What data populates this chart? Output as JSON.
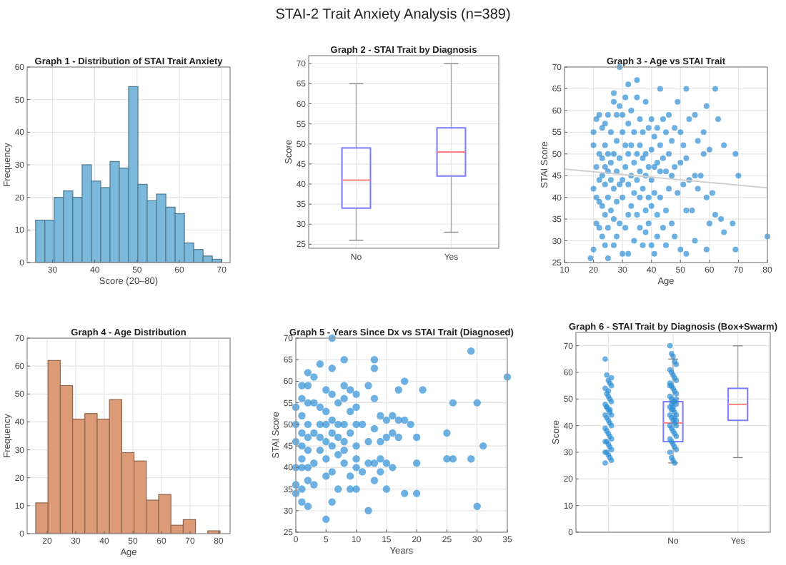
{
  "chart_data": [
    {
      "type": "other",
      "title": "STAI-2 Trait Anxiety Analysis (n=389)"
    },
    {
      "type": "histogram",
      "title": "Graph 1 - Distribution of STAI Trait Anxiety",
      "xlabel": "Score (20–80)",
      "ylabel": "Frequency",
      "color": "#7ab8dc",
      "grid": true,
      "bins": [
        26,
        28.2,
        30.4,
        32.6,
        34.8,
        37,
        39.2,
        41.4,
        43.6,
        45.8,
        48,
        50.2,
        52.4,
        54.6,
        56.8,
        59,
        61.2,
        63.4,
        65.6,
        67.8,
        70
      ],
      "values": [
        13,
        13,
        20,
        22,
        20,
        30,
        25,
        23,
        31,
        29,
        54,
        24,
        19,
        21,
        17,
        15,
        6,
        4,
        2,
        1
      ],
      "xlim": [
        24,
        72
      ],
      "xticks": [
        30,
        40,
        50,
        60,
        70
      ],
      "ylim": [
        0,
        60
      ],
      "yticks": [
        0,
        10,
        20,
        30,
        40,
        50,
        60
      ]
    },
    {
      "type": "box",
      "title": "Graph 2 - STAI Trait by Diagnosis",
      "ylabel": "Score",
      "color": "#7b7bff",
      "grid": true,
      "categories": [
        "No",
        "Yes"
      ],
      "boxes": [
        {
          "low": 26,
          "q1": 34,
          "median": 41,
          "q3": 49,
          "high": 65
        },
        {
          "low": 28,
          "q1": 42,
          "median": 48,
          "q3": 54,
          "high": 70
        }
      ],
      "ylim": [
        24,
        72
      ],
      "yticks": [
        25,
        30,
        35,
        40,
        45,
        50,
        55,
        60,
        65,
        70
      ]
    },
    {
      "type": "scatter",
      "title": "Graph 3 - Age vs STAI Trait",
      "xlabel": "Age",
      "ylabel": "STAI Score",
      "grid": true,
      "xlim": [
        10,
        80
      ],
      "xticks": [
        10,
        20,
        30,
        40,
        50,
        60,
        70,
        80
      ],
      "ylim": [
        25,
        70
      ],
      "yticks": [
        25,
        30,
        35,
        40,
        45,
        50,
        55,
        60,
        65,
        70
      ],
      "series": [
        {
          "type": "scatter",
          "marker": "circle",
          "color": "#2f8fd6",
          "x": [
            20,
            20,
            21,
            21,
            20,
            19,
            20,
            21,
            21,
            22,
            22,
            22,
            22,
            22,
            23,
            23,
            23,
            23,
            23,
            24,
            24,
            24,
            24,
            24,
            24,
            25,
            25,
            25,
            25,
            25,
            25,
            26,
            26,
            26,
            26,
            27,
            27,
            27,
            27,
            27,
            27,
            28,
            28,
            28,
            28,
            28,
            29,
            29,
            29,
            29,
            29,
            30,
            30,
            30,
            30,
            30,
            31,
            31,
            31,
            31,
            32,
            32,
            32,
            32,
            32,
            32,
            33,
            33,
            33,
            33,
            34,
            34,
            34,
            34,
            35,
            35,
            35,
            35,
            35,
            36,
            36,
            36,
            36,
            36,
            37,
            37,
            37,
            37,
            38,
            38,
            38,
            38,
            38,
            39,
            39,
            39,
            39,
            40,
            40,
            40,
            40,
            40,
            41,
            41,
            41,
            41,
            42,
            42,
            42,
            42,
            43,
            43,
            43,
            43,
            44,
            44,
            44,
            45,
            45,
            45,
            45,
            46,
            46,
            46,
            47,
            47,
            47,
            48,
            48,
            48,
            49,
            49,
            50,
            50,
            50,
            51,
            51,
            52,
            52,
            52,
            52,
            53,
            53,
            54,
            55,
            55,
            55,
            56,
            56,
            57,
            58,
            58,
            59,
            59,
            59,
            60,
            60,
            61,
            62,
            62,
            63,
            64,
            65,
            65,
            68,
            69,
            69,
            70,
            80
          ],
          "values": [
            55,
            52,
            58,
            47,
            42,
            26,
            28,
            40,
            34,
            59,
            50,
            44,
            39,
            33,
            56,
            49,
            45,
            38,
            31,
            57,
            52,
            47,
            43,
            36,
            29,
            59,
            50,
            46,
            40,
            26,
            33,
            55,
            48,
            44,
            37,
            64,
            62,
            50,
            42,
            35,
            29,
            59,
            53,
            46,
            39,
            31,
            70,
            61,
            49,
            43,
            34,
            59,
            55,
            44,
            40,
            27,
            63,
            52,
            47,
            33,
            66,
            57,
            50,
            43,
            36,
            27,
            60,
            52,
            45,
            38,
            55,
            48,
            41,
            30,
            67,
            63,
            50,
            44,
            36,
            58,
            52,
            46,
            40,
            33,
            55,
            49,
            42,
            29,
            62,
            50,
            45,
            37,
            32,
            56,
            47,
            40,
            34,
            58,
            51,
            44,
            38,
            29,
            54,
            47,
            41,
            27,
            56,
            48,
            36,
            31,
            65,
            52,
            46,
            40,
            58,
            49,
            33,
            55,
            46,
            37,
            29,
            59,
            50,
            42,
            53,
            45,
            34,
            56,
            47,
            31,
            62,
            41,
            55,
            48,
            28,
            52,
            43,
            65,
            49,
            37,
            27,
            58,
            44,
            37,
            59,
            45,
            30,
            53,
            42,
            45,
            55,
            50,
            61,
            40,
            28,
            51,
            34,
            41,
            65,
            36,
            58,
            35,
            52,
            32,
            34,
            50,
            28,
            45,
            31
          ]
        },
        {
          "type": "line",
          "color": "#d0d0d0",
          "x": [
            10,
            80
          ],
          "values": [
            46.5,
            42.2
          ]
        }
      ]
    },
    {
      "type": "histogram",
      "title": "Graph 4 - Age Distribution",
      "xlabel": "Age",
      "ylabel": "Frequency",
      "color": "#dc9b76",
      "grid": true,
      "bins": [
        16,
        20.3,
        24.6,
        28.9,
        33.2,
        37.5,
        41.8,
        46.1,
        50.4,
        54.7,
        59,
        63.3,
        67.6,
        71.9,
        76.2,
        80.5
      ],
      "values": [
        11,
        62,
        53,
        41,
        43,
        41,
        48,
        29,
        26,
        12,
        14,
        3,
        5,
        0,
        1
      ],
      "xlim": [
        13,
        84
      ],
      "xticks": [
        20,
        30,
        40,
        50,
        60,
        70,
        80
      ],
      "ylim": [
        0,
        70
      ],
      "yticks": [
        0,
        10,
        20,
        30,
        40,
        50,
        60,
        70
      ]
    },
    {
      "type": "scatter",
      "title": "Graph 5 - Years Since Dx vs STAI Trait (Diagnosed)",
      "xlabel": "Years",
      "ylabel": "STAI Score",
      "grid": true,
      "xlim": [
        0,
        35
      ],
      "xticks": [
        0,
        5,
        10,
        15,
        20,
        25,
        30,
        35
      ],
      "ylim": [
        25,
        70
      ],
      "yticks": [
        25,
        30,
        35,
        40,
        45,
        50,
        55,
        60,
        65,
        70
      ],
      "series": [
        {
          "type": "scatter",
          "marker": "circle",
          "color": "#2f8fd6",
          "x": [
            0,
            0,
            0,
            0,
            0,
            0,
            1,
            1,
            1,
            1,
            1,
            1,
            1,
            1,
            1,
            2,
            2,
            2,
            2,
            2,
            2,
            2,
            2,
            2,
            3,
            3,
            3,
            3,
            3,
            4,
            4,
            4,
            4,
            4,
            5,
            5,
            5,
            5,
            5,
            5,
            5,
            6,
            6,
            6,
            6,
            6,
            6,
            6,
            6,
            7,
            7,
            7,
            7,
            7,
            8,
            8,
            8,
            8,
            8,
            8,
            8,
            9,
            9,
            9,
            9,
            9,
            10,
            10,
            10,
            10,
            10,
            10,
            10,
            11,
            11,
            12,
            12,
            12,
            12,
            13,
            13,
            13,
            13,
            13,
            13,
            14,
            14,
            14,
            14,
            15,
            15,
            15,
            15,
            16,
            16,
            16,
            17,
            17,
            17,
            18,
            18,
            18,
            19,
            20,
            20,
            20,
            21,
            25,
            25,
            26,
            26,
            29,
            29,
            30,
            30,
            31,
            35
          ],
          "values": [
            54,
            50,
            46,
            40,
            36,
            34,
            59,
            56,
            52,
            48,
            45,
            42,
            40,
            35,
            32,
            62,
            59,
            55,
            50,
            47,
            44,
            40,
            37,
            31,
            61,
            55,
            48,
            41,
            36,
            64,
            54,
            50,
            47,
            44,
            58,
            53,
            50,
            46,
            42,
            38,
            28,
            70,
            63,
            57,
            51,
            48,
            45,
            39,
            32,
            55,
            50,
            47,
            43,
            35,
            65,
            59,
            56,
            50,
            46,
            44,
            41,
            58,
            53,
            48,
            38,
            35,
            57,
            54,
            50,
            45,
            42,
            40,
            35,
            50,
            39,
            59,
            46,
            41,
            30,
            65,
            63,
            56,
            49,
            41,
            37,
            52,
            46,
            42,
            39,
            51,
            47,
            41,
            35,
            52,
            48,
            40,
            58,
            51,
            47,
            60,
            51,
            34,
            50,
            47,
            41,
            34,
            58,
            48,
            42,
            55,
            42,
            67,
            42,
            55,
            31,
            45,
            61
          ]
        }
      ]
    },
    {
      "type": "box",
      "title": "Graph 6 - STAI Trait by Diagnosis (Box+Swarm)",
      "ylabel": "Score",
      "grid": true,
      "categories": [
        null,
        "No",
        "Yes"
      ],
      "ylim": [
        0,
        75
      ],
      "yticks": [
        0,
        10,
        20,
        30,
        40,
        50,
        60,
        70
      ],
      "series": [
        {
          "type": "box",
          "color": "#7b7bff",
          "boxes": [
            null,
            {
              "low": 26,
              "q1": 34,
              "median": 41,
              "q3": 49,
              "high": 65
            },
            {
              "low": 28,
              "q1": 42,
              "median": 48,
              "q3": 54,
              "high": 70
            }
          ]
        },
        {
          "type": "scatter",
          "marker": "circle",
          "color": "#2f8fd6",
          "x": [
            null,
            null,
            null,
            null,
            null,
            null,
            null,
            null,
            null,
            null,
            null,
            null,
            null,
            null,
            null,
            null,
            null,
            null,
            null,
            null,
            null,
            null,
            null,
            null,
            null,
            null,
            null,
            null,
            null,
            null,
            null,
            null,
            null,
            null,
            null,
            null,
            null,
            null,
            null,
            null,
            "No",
            "No",
            "No",
            "No",
            "No",
            "No",
            "No",
            "No",
            "No",
            "No",
            "No",
            "No",
            "No",
            "No",
            "No",
            "No",
            "No",
            "No",
            "No",
            "No",
            "No",
            "No",
            "No",
            "No",
            "No",
            "No",
            "No",
            "No",
            "No",
            "No",
            "No",
            "No",
            "No",
            "No",
            "No",
            "No",
            "No",
            "No",
            "No",
            "No",
            "No",
            "No",
            "No",
            "No",
            "No",
            "No",
            "No",
            "No",
            "No",
            "No"
          ],
          "values": [
            65,
            59,
            57,
            56,
            55,
            54,
            52,
            51,
            50,
            49,
            48,
            47,
            46,
            45,
            44,
            44,
            43,
            42,
            41,
            40,
            39,
            38,
            37,
            36,
            35,
            34,
            34,
            33,
            32,
            31,
            30,
            30,
            29,
            28,
            27,
            26,
            47,
            53,
            46,
            58,
            70,
            67,
            66,
            64,
            63,
            61,
            60,
            59,
            58,
            57,
            56,
            55,
            54,
            53,
            52,
            51,
            50,
            49,
            49,
            48,
            47,
            46,
            46,
            45,
            44,
            44,
            43,
            42,
            41,
            40,
            40,
            39,
            38,
            37,
            36,
            35,
            34,
            33,
            32,
            31,
            30,
            28,
            27,
            26,
            50,
            55,
            48,
            47,
            43,
            42
          ]
        }
      ]
    }
  ]
}
